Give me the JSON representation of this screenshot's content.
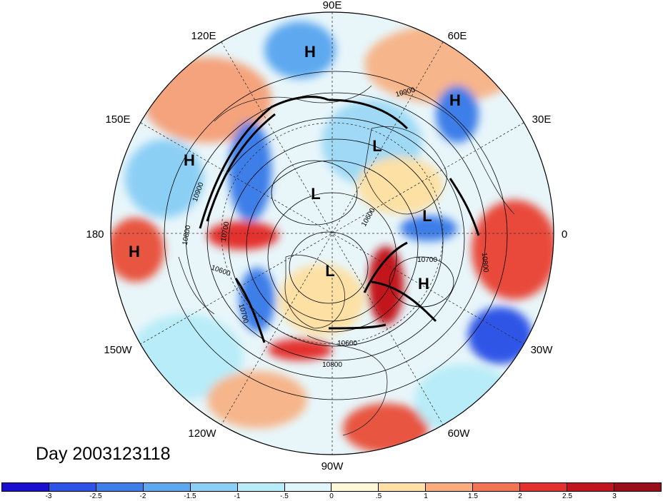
{
  "title": "Day 2003123118",
  "longitude_labels": [
    "90E",
    "60E",
    "30E",
    "0",
    "30W",
    "60W",
    "90W",
    "120W",
    "150W",
    "180",
    "150E",
    "120E"
  ],
  "pressure_centers": [
    "H",
    "H",
    "H",
    "H",
    "H",
    "L",
    "L",
    "L",
    "L"
  ],
  "contour_labels": [
    "10900",
    "10900",
    "10800",
    "10700",
    "10600",
    "10700",
    "10600",
    "10800",
    "10700",
    "10800",
    "10600"
  ],
  "colorbar": {
    "ticks": [
      "-3",
      "-2.5",
      "-2",
      "-1.5",
      "-1",
      "-.5",
      "0",
      ".5",
      "1",
      "1.5",
      "2",
      "2.5",
      "3"
    ],
    "colors": [
      "#1a0fcf",
      "#2d54e6",
      "#3d7ee8",
      "#5da8ef",
      "#8ccff5",
      "#b8ecf8",
      "#dff7fb",
      "#fdf8d8",
      "#fde0a4",
      "#f9ad7e",
      "#f17552",
      "#e3312e",
      "#c2141f",
      "#9a0d1a"
    ]
  }
}
